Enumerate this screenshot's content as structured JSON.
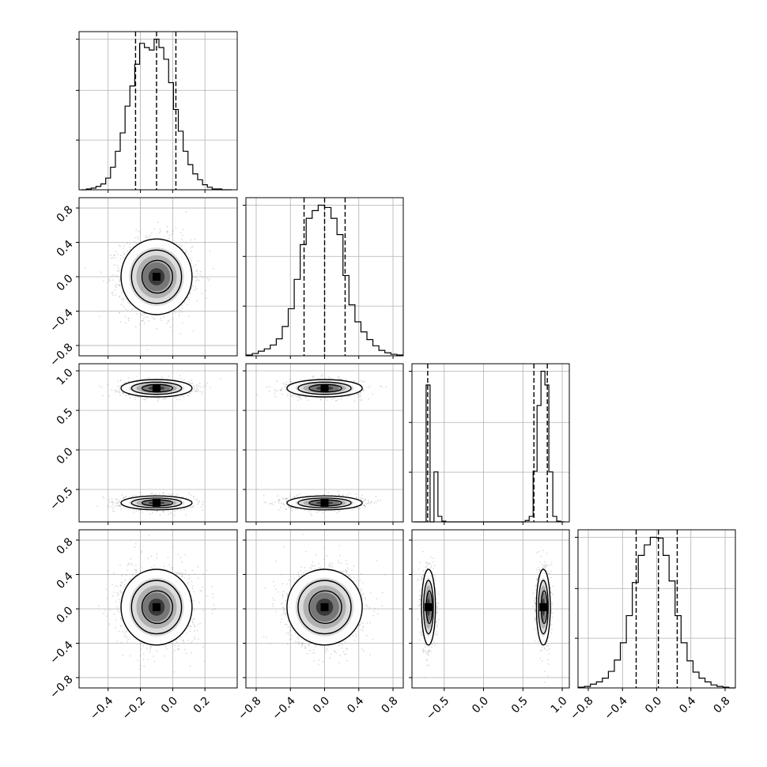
{
  "chart_data": {
    "type": "corner",
    "title": "",
    "parameters": [
      {
        "label": "",
        "range": [
          -0.58,
          0.4
        ],
        "ticks": [
          -0.4,
          -0.2,
          0.0,
          0.2
        ],
        "tick_labels": [
          "−0.4",
          "−0.2",
          "0.0",
          "0.2"
        ],
        "quantiles": [
          -0.23,
          -0.1,
          0.02
        ]
      },
      {
        "label": "",
        "range": [
          -0.92,
          0.92
        ],
        "ticks": [
          -0.8,
          -0.4,
          0.0,
          0.4,
          0.8
        ],
        "tick_labels": [
          "−0.8",
          "−0.4",
          "0.0",
          "0.4",
          "0.8"
        ],
        "quantiles": [
          -0.24,
          0.0,
          0.24
        ]
      },
      {
        "label": "",
        "range": [
          -0.91,
          1.09
        ],
        "ticks": [
          -0.5,
          0.0,
          0.5,
          1.0
        ],
        "tick_labels": [
          "−0.5",
          "0.0",
          "0.5",
          "1.0"
        ],
        "quantiles": [
          -0.71,
          0.64,
          0.81
        ]
      },
      {
        "label": "",
        "range": [
          -0.92,
          0.92
        ],
        "ticks": [
          -0.8,
          -0.4,
          0.0,
          0.4,
          0.8
        ],
        "tick_labels": [
          "−0.8",
          "−0.4",
          "0.0",
          "0.4",
          "0.8"
        ],
        "quantiles": [
          -0.24,
          0.02,
          0.24
        ]
      }
    ],
    "histograms": [
      {
        "bin_centers": [
          -0.55,
          -0.52,
          -0.49,
          -0.46,
          -0.43,
          -0.4,
          -0.37,
          -0.34,
          -0.31,
          -0.28,
          -0.25,
          -0.22,
          -0.19,
          -0.16,
          -0.13,
          -0.1,
          -0.07,
          -0.04,
          -0.01,
          0.02,
          0.05,
          0.08,
          0.11,
          0.14,
          0.17,
          0.2,
          0.23,
          0.26,
          0.29,
          0.32,
          0.35
        ],
        "counts": [
          0,
          1,
          2,
          4,
          7,
          14,
          27,
          46,
          68,
          100,
          124,
          150,
          175,
          170,
          167,
          180,
          170,
          156,
          128,
          96,
          70,
          46,
          30,
          19,
          12,
          6,
          3,
          1,
          1,
          0,
          0
        ]
      },
      {
        "bin_centers": [
          -0.88,
          -0.81,
          -0.74,
          -0.67,
          -0.6,
          -0.53,
          -0.46,
          -0.39,
          -0.32,
          -0.25,
          -0.18,
          -0.11,
          -0.04,
          0.04,
          0.11,
          0.18,
          0.25,
          0.32,
          0.39,
          0.46,
          0.53,
          0.6,
          0.67,
          0.74,
          0.81,
          0.88
        ],
        "counts": [
          1,
          3,
          6,
          9,
          14,
          22,
          38,
          61,
          99,
          144,
          178,
          188,
          195,
          192,
          178,
          157,
          104,
          66,
          44,
          31,
          21,
          13,
          7,
          4,
          2,
          1
        ]
      },
      {
        "bin_centers": [
          -0.855,
          -0.805,
          -0.755,
          -0.705,
          -0.655,
          -0.605,
          -0.555,
          -0.505,
          -0.455,
          0.455,
          0.505,
          0.555,
          0.605,
          0.655,
          0.705,
          0.755,
          0.805,
          0.855,
          0.905,
          0.955,
          1.005
        ],
        "counts": [
          0,
          0,
          0,
          200,
          0,
          73,
          8,
          1,
          0,
          0,
          0,
          2,
          8,
          74,
          170,
          220,
          200,
          73,
          8,
          1,
          0
        ]
      },
      {
        "bin_centers": [
          -0.88,
          -0.81,
          -0.74,
          -0.67,
          -0.6,
          -0.53,
          -0.46,
          -0.39,
          -0.32,
          -0.25,
          -0.18,
          -0.11,
          -0.04,
          0.04,
          0.11,
          0.18,
          0.25,
          0.32,
          0.39,
          0.46,
          0.53,
          0.6,
          0.67,
          0.74,
          0.81,
          0.88
        ],
        "counts": [
          1,
          2,
          5,
          8,
          13,
          22,
          37,
          60,
          96,
          140,
          176,
          190,
          200,
          199,
          176,
          142,
          96,
          60,
          36,
          21,
          13,
          8,
          4,
          2,
          1,
          0
        ]
      }
    ],
    "scatter_panels": [
      {
        "x_param": 0,
        "y_param": 1,
        "modes": [
          {
            "x": -0.1,
            "y": 0.0,
            "sx": 0.1,
            "sy": 0.2
          }
        ]
      },
      {
        "x_param": 0,
        "y_param": 2,
        "modes": [
          {
            "x": -0.1,
            "y": 0.78,
            "sx": 0.1,
            "sy": 0.05
          },
          {
            "x": -0.1,
            "y": -0.67,
            "sx": 0.1,
            "sy": 0.04
          }
        ]
      },
      {
        "x_param": 1,
        "y_param": 2,
        "modes": [
          {
            "x": 0.0,
            "y": 0.78,
            "sx": 0.2,
            "sy": 0.05
          },
          {
            "x": 0.0,
            "y": -0.67,
            "sx": 0.2,
            "sy": 0.04
          }
        ]
      },
      {
        "x_param": 0,
        "y_param": 3,
        "modes": [
          {
            "x": -0.1,
            "y": 0.02,
            "sx": 0.1,
            "sy": 0.2
          }
        ]
      },
      {
        "x_param": 1,
        "y_param": 3,
        "modes": [
          {
            "x": 0.0,
            "y": 0.02,
            "sx": 0.2,
            "sy": 0.2
          }
        ]
      },
      {
        "x_param": 2,
        "y_param": 3,
        "modes": [
          {
            "x": -0.7,
            "y": 0.02,
            "sx": 0.04,
            "sy": 0.2
          },
          {
            "x": 0.76,
            "y": 0.02,
            "sx": 0.04,
            "sy": 0.2
          }
        ]
      }
    ],
    "grid": true,
    "legend": "none"
  }
}
